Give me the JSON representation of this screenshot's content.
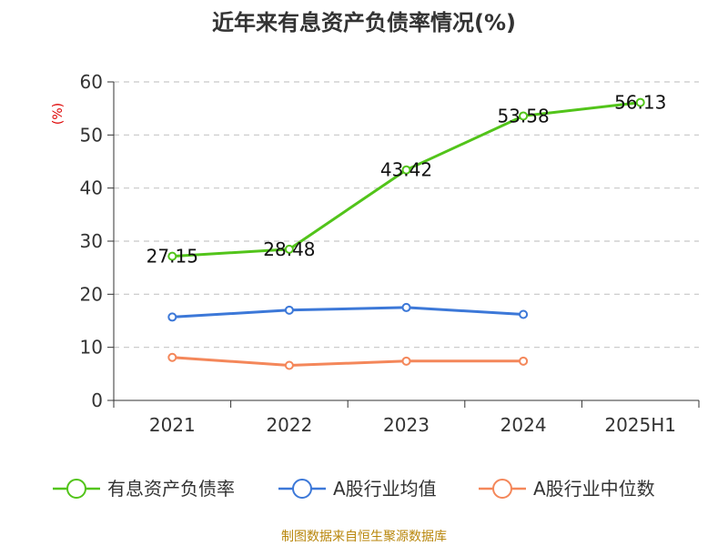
{
  "chart_data": {
    "type": "line",
    "title": "近年来有息资产负债率情况(%)",
    "ylabel": "(%)",
    "categories": [
      "2021",
      "2022",
      "2023",
      "2024",
      "2025H1"
    ],
    "yticks": [
      0,
      10,
      20,
      30,
      40,
      50,
      60
    ],
    "ylim": [
      0,
      60
    ],
    "grid": true,
    "legend_position": "bottom",
    "series": [
      {
        "name": "有息资产负债率",
        "color": "#52c41a",
        "values": [
          27.15,
          28.48,
          43.42,
          53.58,
          56.13
        ],
        "labels": [
          "27.15",
          "28.48",
          "43.42",
          "53.58",
          "56.13"
        ]
      },
      {
        "name": "A股行业均值",
        "color": "#3c78d8",
        "values": [
          15.7,
          17.0,
          17.5,
          16.2,
          null
        ]
      },
      {
        "name": "A股行业中位数",
        "color": "#f4875a",
        "values": [
          8.1,
          6.6,
          7.4,
          7.4,
          null
        ]
      }
    ],
    "source": "制图数据来自恒生聚源数据库"
  }
}
